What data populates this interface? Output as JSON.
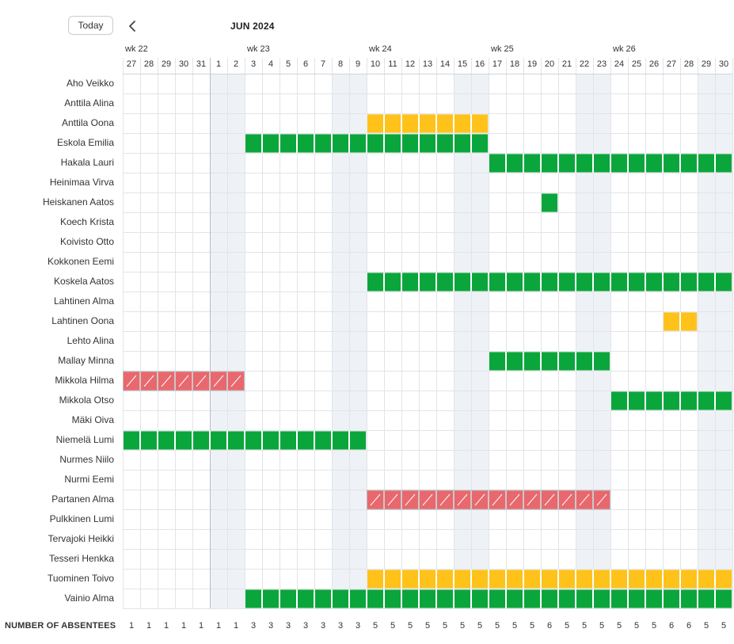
{
  "toolbar": {
    "today_label": "Today",
    "prev_icon": "chevron-left-icon",
    "month_label": "JUN 2024"
  },
  "weeks": [
    {
      "label": "wk 22",
      "start_index": 0
    },
    {
      "label": "wk 23",
      "start_index": 7
    },
    {
      "label": "wk 24",
      "start_index": 14
    },
    {
      "label": "wk 25",
      "start_index": 21
    },
    {
      "label": "wk 26",
      "start_index": 28
    }
  ],
  "days": [
    "27",
    "28",
    "29",
    "30",
    "31",
    "1",
    "2",
    "3",
    "4",
    "5",
    "6",
    "7",
    "8",
    "9",
    "10",
    "11",
    "12",
    "13",
    "14",
    "15",
    "16",
    "17",
    "18",
    "19",
    "20",
    "21",
    "22",
    "23",
    "24",
    "25",
    "26",
    "27",
    "28",
    "29",
    "30"
  ],
  "weekend_indices": [
    5,
    6,
    12,
    13,
    19,
    20,
    26,
    27,
    33,
    34
  ],
  "colors": {
    "green": "#0aa63c",
    "yellow": "#ffc21a",
    "red": "#e8686e",
    "weekend": "#eef2f6",
    "grid": "#e1e4e8"
  },
  "employees": [
    {
      "name": "Aho Veikko",
      "absences": []
    },
    {
      "name": "Anttila Alina",
      "absences": []
    },
    {
      "name": "Anttila Oona",
      "absences": [
        {
          "start": 14,
          "end": 20,
          "type": "yellow"
        }
      ]
    },
    {
      "name": "Eskola Emilia",
      "absences": [
        {
          "start": 7,
          "end": 20,
          "type": "green"
        }
      ]
    },
    {
      "name": "Hakala Lauri",
      "absences": [
        {
          "start": 21,
          "end": 34,
          "type": "green"
        }
      ]
    },
    {
      "name": "Heinimaa Virva",
      "absences": []
    },
    {
      "name": "Heiskanen Aatos",
      "absences": [
        {
          "start": 24,
          "end": 24,
          "type": "green"
        }
      ]
    },
    {
      "name": "Koech Krista",
      "absences": []
    },
    {
      "name": "Koivisto Otto",
      "absences": []
    },
    {
      "name": "Kokkonen Eemi",
      "absences": []
    },
    {
      "name": "Koskela Aatos",
      "absences": [
        {
          "start": 14,
          "end": 34,
          "type": "green"
        }
      ]
    },
    {
      "name": "Lahtinen Alma",
      "absences": []
    },
    {
      "name": "Lahtinen Oona",
      "absences": [
        {
          "start": 31,
          "end": 32,
          "type": "yellow"
        }
      ]
    },
    {
      "name": "Lehto Alina",
      "absences": []
    },
    {
      "name": "Mallay Minna",
      "absences": [
        {
          "start": 21,
          "end": 27,
          "type": "green"
        }
      ]
    },
    {
      "name": "Mikkola Hilma",
      "absences": [
        {
          "start": 0,
          "end": 6,
          "type": "red"
        }
      ]
    },
    {
      "name": "Mikkola Otso",
      "absences": [
        {
          "start": 28,
          "end": 34,
          "type": "green"
        }
      ]
    },
    {
      "name": "Mäki Oiva",
      "absences": []
    },
    {
      "name": "Niemelä Lumi",
      "absences": [
        {
          "start": 0,
          "end": 13,
          "type": "green"
        }
      ]
    },
    {
      "name": "Nurmes Niilo",
      "absences": []
    },
    {
      "name": "Nurmi Eemi",
      "absences": []
    },
    {
      "name": "Partanen Alma",
      "absences": [
        {
          "start": 14,
          "end": 27,
          "type": "red"
        }
      ]
    },
    {
      "name": "Pulkkinen Lumi",
      "absences": []
    },
    {
      "name": "Tervajoki Heikki",
      "absences": []
    },
    {
      "name": "Tesseri Henkka",
      "absences": []
    },
    {
      "name": "Tuominen Toivo",
      "absences": [
        {
          "start": 14,
          "end": 34,
          "type": "yellow"
        }
      ]
    },
    {
      "name": "Vainio Alma",
      "absences": [
        {
          "start": 7,
          "end": 34,
          "type": "green"
        }
      ]
    }
  ],
  "footer": {
    "label": "NUMBER OF ABSENTEES",
    "counts": [
      "1",
      "1",
      "1",
      "1",
      "1",
      "1",
      "1",
      "3",
      "3",
      "3",
      "3",
      "3",
      "3",
      "3",
      "5",
      "5",
      "5",
      "5",
      "5",
      "5",
      "5",
      "5",
      "5",
      "5",
      "6",
      "5",
      "5",
      "5",
      "5",
      "5",
      "5",
      "6",
      "6",
      "5",
      "5"
    ]
  }
}
